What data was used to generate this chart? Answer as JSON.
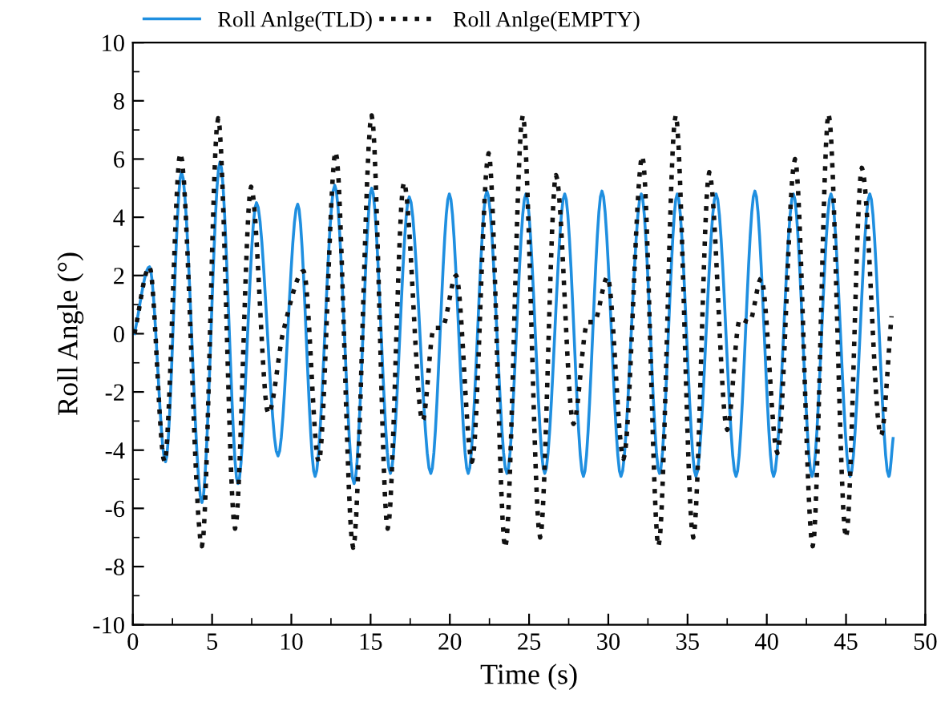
{
  "chart_data": {
    "type": "line",
    "xlabel": "Time (s)",
    "ylabel": "Roll Angle (°)",
    "xlim": [
      0,
      50
    ],
    "ylim": [
      -10,
      10
    ],
    "xticks": [
      0,
      5,
      10,
      15,
      20,
      25,
      30,
      35,
      40,
      45,
      50
    ],
    "yticks": [
      -10,
      -8,
      -6,
      -4,
      -2,
      0,
      2,
      4,
      6,
      8,
      10
    ],
    "grid": false,
    "legend": "top",
    "series": [
      {
        "name": "Roll Anlge(TLD)",
        "color": "#1f8fe0",
        "line_style": "solid",
        "x": [
          0.1,
          1.05,
          2.06,
          3.07,
          4.36,
          5.5,
          6.63,
          7.8,
          9.16,
          10.4,
          11.5,
          12.74,
          13.96,
          15.07,
          16.25,
          17.44,
          18.8,
          19.97,
          21.16,
          22.34,
          23.6,
          24.8,
          25.99,
          27.25,
          28.43,
          29.6,
          30.8,
          32.08,
          33.23,
          34.35,
          35.53,
          36.8,
          38.06,
          39.25,
          40.43,
          41.68,
          42.86,
          44.05,
          45.26,
          46.5,
          47.7,
          47.97
        ],
        "values": [
          0,
          2.3,
          -4.4,
          5.55,
          -5.8,
          5.9,
          -5.15,
          4.5,
          -4.2,
          4.45,
          -4.9,
          5.1,
          -5.15,
          5.0,
          -4.8,
          4.7,
          -4.8,
          4.8,
          -4.8,
          4.9,
          -4.8,
          4.8,
          -4.8,
          4.8,
          -4.9,
          4.9,
          -4.9,
          4.8,
          -4.8,
          4.8,
          -4.9,
          4.8,
          -4.9,
          4.9,
          -4.9,
          4.8,
          -4.9,
          4.8,
          -4.9,
          4.8,
          -4.9,
          -3.6
        ]
      },
      {
        "name": "Roll Anlge(EMPTY)",
        "color": "#111111",
        "line_style": "dotted",
        "x": [
          0.1,
          1.05,
          2.0,
          3.0,
          4.36,
          5.38,
          6.45,
          7.46,
          8.55,
          9.5,
          10.78,
          11.73,
          12.8,
          13.9,
          15.07,
          16.08,
          17.1,
          18.28,
          19.0,
          19.5,
          20.4,
          21.4,
          22.45,
          23.5,
          24.6,
          25.7,
          26.7,
          27.8,
          28.7,
          29.1,
          29.95,
          30.96,
          32.15,
          33.17,
          34.25,
          35.36,
          36.37,
          37.5,
          38.3,
          38.9,
          39.65,
          40.67,
          41.78,
          42.9,
          43.9,
          45.0,
          46.0,
          47.2,
          47.87
        ],
        "values": [
          0,
          2.3,
          -4.4,
          6.2,
          -7.3,
          7.4,
          -6.7,
          5.05,
          -2.75,
          0.1,
          2.15,
          -4.4,
          6.25,
          -7.35,
          7.5,
          -6.7,
          5.2,
          -3.0,
          0.2,
          0.2,
          2.0,
          -4.4,
          6.2,
          -7.35,
          7.5,
          -7.0,
          5.45,
          -3.1,
          0.4,
          0.4,
          1.95,
          -4.3,
          6.1,
          -7.3,
          7.5,
          -7.0,
          5.55,
          -3.3,
          0.5,
          0.4,
          1.9,
          -4.1,
          6.0,
          -7.3,
          7.55,
          -7.0,
          5.7,
          -3.5,
          0.6
        ]
      }
    ]
  }
}
